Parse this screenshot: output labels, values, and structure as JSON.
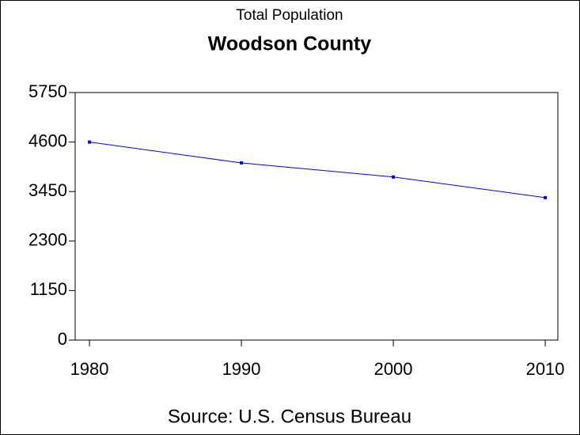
{
  "chart_data": {
    "type": "line",
    "subtitle": "Total Population",
    "title": "Woodson County",
    "source": "Source: U.S. Census Bureau",
    "x": [
      1980,
      1990,
      2000,
      2010
    ],
    "series": [
      {
        "name": "Total Population",
        "color": "#0000ff",
        "values": [
          4600,
          4116,
          3788,
          3309
        ]
      }
    ],
    "xlim": [
      1979.06,
      2010.83
    ],
    "xticks": [
      1980,
      1990,
      2000,
      2010
    ],
    "ylim": [
      0,
      5750
    ],
    "yticks": [
      0,
      1150,
      2300,
      3450,
      4600,
      5750
    ],
    "grid": false
  }
}
